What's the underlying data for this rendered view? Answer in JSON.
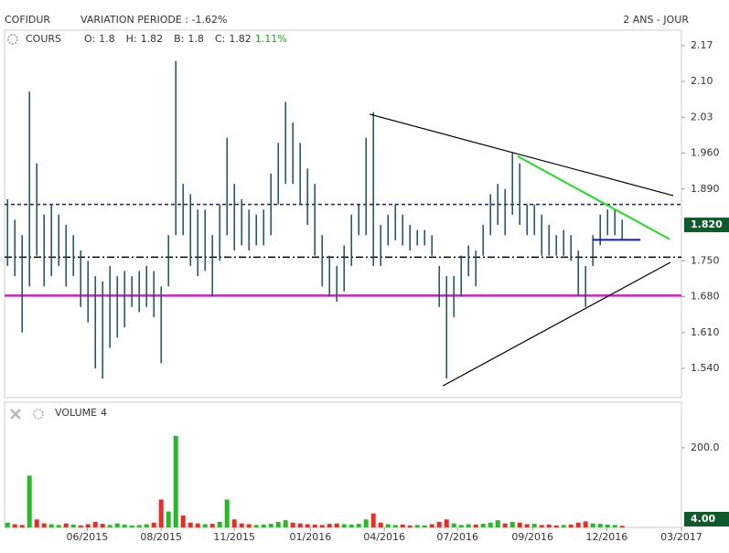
{
  "header": {
    "name": "COFIDUR",
    "variation": "VARIATION PERIODE : -1.62%",
    "period": "2 ANS - JOUR"
  },
  "price_panel": {
    "label": "COURS",
    "ohlc": [
      {
        "label": "O:",
        "value": "1.8"
      },
      {
        "label": "H:",
        "value": "1.82"
      },
      {
        "label": "B:",
        "value": "1.8"
      },
      {
        "label": "C:",
        "value": "1.82"
      }
    ],
    "change": "1.11%"
  },
  "volume_panel": {
    "label": "VOLUME",
    "count": "4"
  },
  "chart_data": [
    {
      "type": "range_bar",
      "color": "#1f4e5a",
      "xlim": [
        -0.4,
        92.1
      ],
      "ylim": [
        1.483,
        2.2
      ],
      "xticks": [
        {
          "value": 10.9,
          "label": "06/2015"
        },
        {
          "value": 21,
          "label": "08/2015"
        },
        {
          "value": 31,
          "label": "11/2015"
        },
        {
          "value": 41.4,
          "label": "01/2016"
        },
        {
          "value": 51.5,
          "label": "04/2016"
        },
        {
          "value": 61.5,
          "label": "07/2016"
        },
        {
          "value": 71.75,
          "label": "09/2016"
        },
        {
          "value": 81.9,
          "label": "12/2016"
        },
        {
          "value": 92.1,
          "label": "03/2017"
        }
      ],
      "yticks": [
        2.17,
        {
          "value": 2.1,
          "label": "2.10"
        },
        2.03,
        {
          "value": 1.96,
          "label": "1.960"
        },
        {
          "value": 1.89,
          "label": "1.890"
        },
        {
          "value": 1.75,
          "label": "1.750"
        },
        {
          "value": 1.68,
          "label": "1.680"
        },
        {
          "value": 1.61,
          "label": "1.610"
        },
        {
          "value": 1.54,
          "label": "1.540"
        }
      ],
      "last": {
        "value": 1.82,
        "label": "1.820",
        "color": "#0f5a2a"
      },
      "low": [
        1.74,
        1.72,
        1.61,
        1.7,
        1.76,
        1.7,
        1.72,
        1.74,
        1.7,
        1.72,
        1.66,
        1.63,
        1.54,
        1.52,
        1.58,
        1.6,
        1.62,
        1.66,
        1.65,
        1.66,
        1.64,
        1.55,
        1.7,
        1.8,
        1.8,
        1.74,
        1.72,
        1.73,
        1.68,
        1.75,
        1.8,
        1.77,
        1.78,
        1.77,
        1.78,
        1.78,
        1.8,
        1.86,
        1.9,
        1.9,
        1.86,
        1.82,
        1.76,
        1.7,
        1.68,
        1.67,
        1.69,
        1.74,
        1.8,
        1.8,
        1.74,
        1.74,
        1.78,
        1.79,
        1.78,
        1.77,
        1.78,
        1.78,
        1.76,
        1.66,
        1.52,
        1.64,
        1.68,
        1.72,
        1.7,
        1.76,
        1.8,
        1.82,
        1.8,
        1.84,
        1.82,
        1.8,
        1.8,
        1.76,
        1.76,
        1.76,
        1.76,
        1.75,
        1.68,
        1.66,
        1.74,
        1.78,
        1.8,
        1.8,
        1.79
      ],
      "high": [
        1.87,
        1.83,
        1.8,
        2.08,
        1.94,
        1.84,
        1.86,
        1.84,
        1.82,
        1.8,
        1.77,
        1.75,
        1.72,
        1.71,
        1.74,
        1.72,
        1.73,
        1.72,
        1.73,
        1.74,
        1.73,
        1.7,
        1.8,
        2.14,
        1.9,
        1.88,
        1.85,
        1.85,
        1.8,
        1.86,
        1.99,
        1.9,
        1.87,
        1.85,
        1.84,
        1.85,
        1.92,
        1.98,
        2.06,
        2.02,
        1.98,
        1.93,
        1.9,
        1.8,
        1.76,
        1.74,
        1.78,
        1.84,
        1.86,
        1.99,
        2.04,
        1.82,
        1.84,
        1.86,
        1.84,
        1.82,
        1.81,
        1.81,
        1.8,
        1.74,
        1.72,
        1.72,
        1.76,
        1.78,
        1.77,
        1.82,
        1.88,
        1.9,
        1.89,
        1.96,
        1.94,
        1.86,
        1.86,
        1.84,
        1.82,
        1.8,
        1.81,
        1.8,
        1.77,
        1.74,
        1.8,
        1.84,
        1.85,
        1.85,
        1.83
      ],
      "hlines": [
        {
          "value": 1.86,
          "color": "#1a1a8c",
          "style": "dashed"
        },
        {
          "value": 1.757,
          "color": "#000000",
          "style": "dashdot"
        },
        {
          "value": 1.682,
          "color": "#d020c0",
          "style": "solid"
        }
      ],
      "trendlines": [
        {
          "x": [
            49.5,
            91.0
          ],
          "y": [
            2.036,
            1.877
          ],
          "color": "#000000"
        },
        {
          "x": [
            69.7,
            90.5
          ],
          "y": [
            1.954,
            1.792
          ],
          "color": "#22dd22"
        },
        {
          "x": [
            59.5,
            90.6
          ],
          "y": [
            1.506,
            1.747
          ],
          "color": "#000000"
        },
        {
          "x": [
            80.0,
            86.5
          ],
          "y": [
            1.791,
            1.791
          ],
          "color": "#1a1aaa"
        }
      ]
    },
    {
      "type": "volume_bar",
      "up_color": "#2db52d",
      "down_color": "#e0302a",
      "xlim": [
        -0.4,
        92.1
      ],
      "ylim": [
        0,
        303
      ],
      "yticks": [
        {
          "value": 200,
          "label": "200.0"
        }
      ],
      "last": {
        "value": 4,
        "label": "4.00",
        "color": "#0f5a2a"
      },
      "values": [
        12,
        8,
        6,
        130,
        20,
        10,
        8,
        6,
        10,
        7,
        5,
        8,
        14,
        9,
        6,
        10,
        7,
        5,
        6,
        8,
        12,
        70,
        40,
        230,
        30,
        12,
        10,
        8,
        9,
        14,
        70,
        20,
        10,
        8,
        6,
        7,
        9,
        14,
        18,
        12,
        10,
        8,
        7,
        6,
        9,
        10,
        8,
        7,
        9,
        20,
        35,
        12,
        8,
        6,
        7,
        5,
        6,
        5,
        8,
        14,
        20,
        10,
        6,
        8,
        7,
        9,
        12,
        18,
        10,
        14,
        12,
        8,
        9,
        6,
        7,
        5,
        6,
        7,
        12,
        15,
        10,
        9,
        7,
        6,
        4
      ]
    }
  ]
}
